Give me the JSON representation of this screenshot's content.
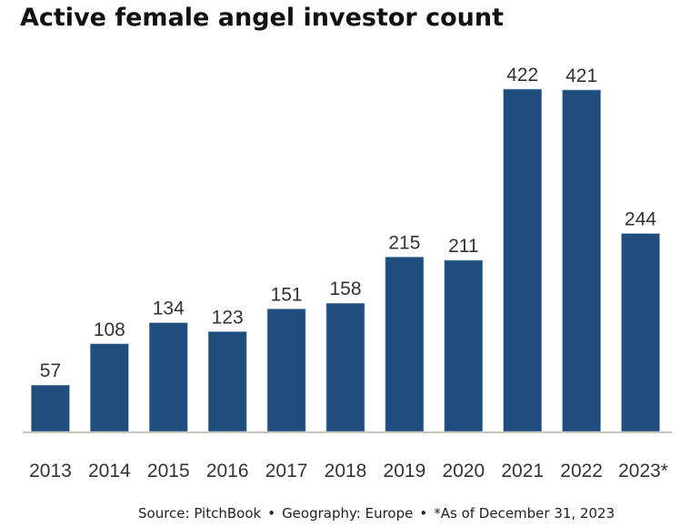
{
  "chart_data": {
    "type": "bar",
    "title": "Active female angel investor count",
    "xlabel": "",
    "ylabel": "",
    "categories": [
      "2013",
      "2014",
      "2015",
      "2016",
      "2017",
      "2018",
      "2019",
      "2020",
      "2021",
      "2022",
      "2023*"
    ],
    "values": [
      57,
      108,
      134,
      123,
      151,
      158,
      215,
      211,
      422,
      421,
      244
    ],
    "ylim": [
      0,
      422
    ],
    "grid": false,
    "legend": "none",
    "bar_color": "#1f4e7e",
    "axis_color": "#c9c4bc"
  },
  "footer": {
    "source": "Source: PitchBook",
    "geography": "Geography: Europe",
    "note": "*As of December 31, 2023",
    "separator": "•"
  }
}
